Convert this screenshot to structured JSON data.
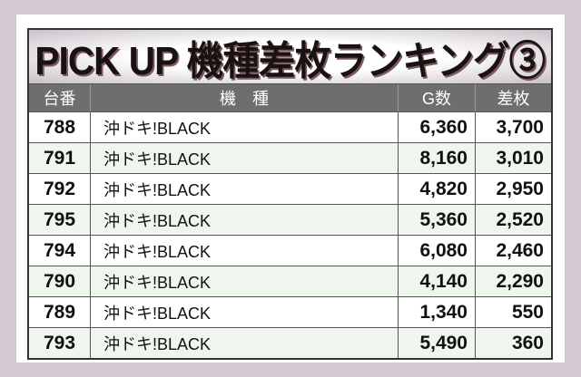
{
  "title": "PICK UP 機種差枚ランキング③",
  "headers": [
    "台番",
    "機　種",
    "G数",
    "差枚"
  ],
  "rows": [
    [
      "788",
      "沖ドキ!BLACK",
      "6,360",
      "3,700"
    ],
    [
      "791",
      "沖ドキ!BLACK",
      "8,160",
      "3,010"
    ],
    [
      "792",
      "沖ドキ!BLACK",
      "4,820",
      "2,950"
    ],
    [
      "795",
      "沖ドキ!BLACK",
      "5,360",
      "2,520"
    ],
    [
      "794",
      "沖ドキ!BLACK",
      "6,080",
      "2,460"
    ],
    [
      "790",
      "沖ドキ!BLACK",
      "4,140",
      "2,290"
    ],
    [
      "789",
      "沖ドキ!BLACK",
      "1,340",
      "550"
    ],
    [
      "793",
      "沖ドキ!BLACK",
      "5,490",
      "360"
    ]
  ]
}
